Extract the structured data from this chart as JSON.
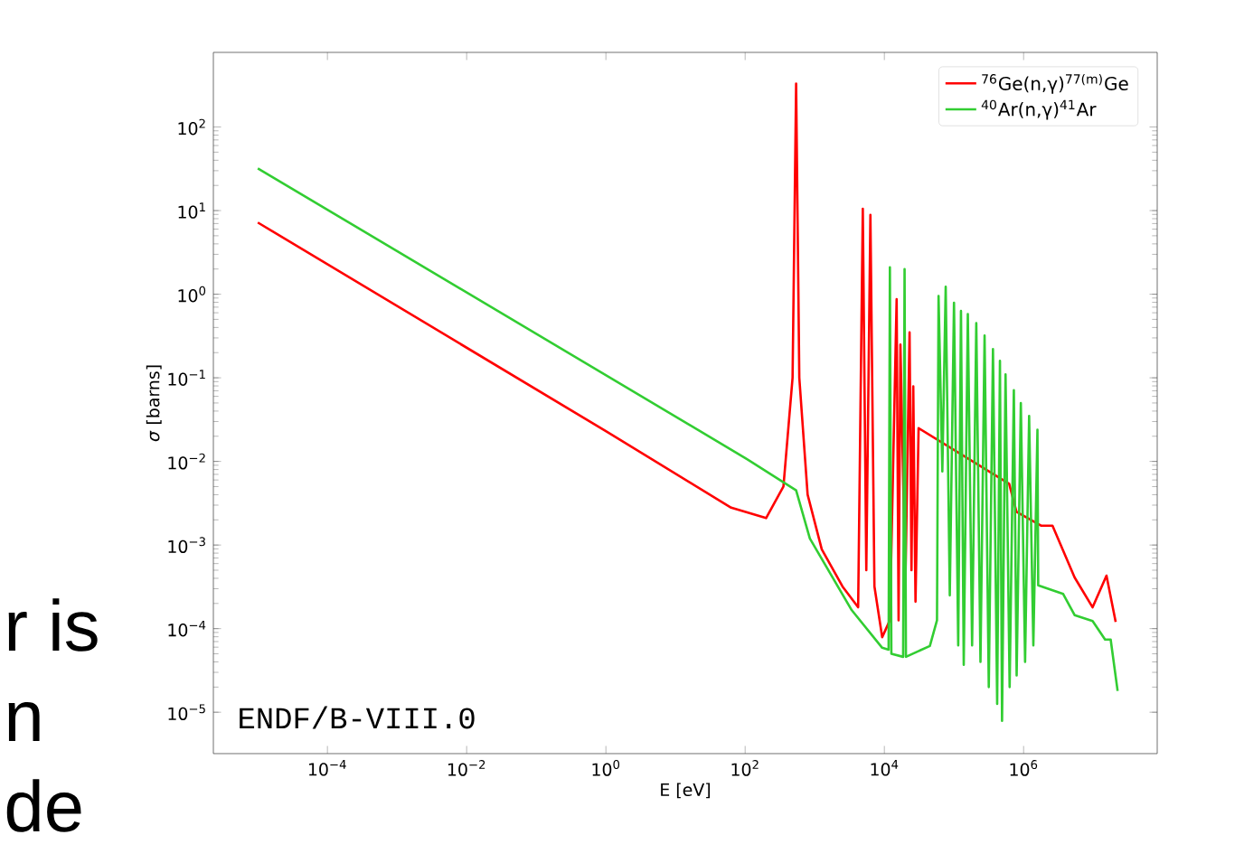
{
  "chart_data": {
    "type": "line",
    "xlabel": "E [eV]",
    "ylabel": "*σ* [barns]",
    "log": "xy",
    "legend": "top right",
    "grid": false,
    "marker": "none",
    "line_style": "solid",
    "xlim": [
      2.3e-06,
      83000000.0
    ],
    "ylim": [
      3.2e-06,
      780
    ],
    "xticks": [
      {
        "value": 0.0001,
        "label": "10$^{−4}$"
      },
      {
        "value": 0.01,
        "label": "10$^{−2}$"
      },
      {
        "value": 1,
        "label": "10$^{0}$"
      },
      {
        "value": 100,
        "label": "10$^{2}$"
      },
      {
        "value": 10000,
        "label": "10$^{4}$"
      },
      {
        "value": 1000000,
        "label": "10$^{6}$"
      }
    ],
    "yticks": [
      {
        "value": 1e-05,
        "label": "10$^{−5}$"
      },
      {
        "value": 0.0001,
        "label": "10$^{−4}$"
      },
      {
        "value": 0.001,
        "label": "10$^{−3}$"
      },
      {
        "value": 0.01,
        "label": "10$^{−2}$"
      },
      {
        "value": 0.1,
        "label": "10$^{−1}$"
      },
      {
        "value": 1,
        "label": "10$^{0}$"
      },
      {
        "value": 10,
        "label": "10$^{1}$"
      },
      {
        "value": 100,
        "label": "10$^{2}$"
      }
    ],
    "annotations": [
      "ENDF/B-VIII.0",
      "r is",
      "n",
      "de"
    ],
    "series": [
      {
        "name": "$^{76}$Ge(n,γ)$^{77(m)}$Ge",
        "color": "#ff0000",
        "x": [
          1e-05,
          1,
          63,
          200,
          355,
          480,
          540,
          600,
          790,
          1260,
          2500,
          4200,
          4900,
          5500,
          6300,
          7200,
          9300,
          12000,
          15000,
          16000,
          17000,
          20000,
          23000,
          24500,
          26000,
          28000,
          31000,
          620000,
          790000,
          1800000,
          2600000,
          5400000,
          9800000,
          15500000,
          21000000
        ],
        "values": [
          7.2,
          0.023,
          0.0028,
          0.0021,
          0.005,
          0.1,
          330,
          0.1,
          0.004,
          0.00089,
          0.00032,
          0.00018,
          10.5,
          0.0005,
          8.9,
          0.00032,
          7.9e-05,
          0.000126,
          0.87,
          0.000126,
          0.25,
          0.00032,
          0.35,
          0.0005,
          0.079,
          0.00021,
          0.025,
          0.0054,
          0.0025,
          0.0017,
          0.0017,
          0.00041,
          0.00018,
          0.00043,
          0.00012
        ]
      },
      {
        "name": "$^{40}$Ar(n,γ)$^{41}$Ar",
        "color": "#32cd32",
        "x": [
          1e-05,
          100,
          540,
          850,
          3400,
          9300,
          11500,
          12000,
          12600,
          18600,
          19500,
          20400,
          45000,
          57000,
          60000,
          68000,
          76000,
          87000,
          100000,
          115000,
          126000,
          138000,
          158000,
          182000,
          209000,
          240000,
          275000,
          316000,
          363000,
          417000,
          457000,
          490000,
          550000,
          630000,
          724000,
          794000,
          912000,
          1050000,
          1200000,
          1380000,
          1580000,
          1620000,
          3700000,
          5400000,
          9800000,
          14800000,
          17800000,
          22400000
        ],
        "values": [
          32,
          0.011,
          0.0045,
          0.0012,
          0.000166,
          5.9e-05,
          5.6e-05,
          2.1,
          5e-05,
          4.6e-05,
          2.0,
          4.6e-05,
          6.2e-05,
          0.000126,
          0.95,
          0.0076,
          1.23,
          0.00025,
          0.79,
          6.3e-05,
          0.63,
          3.7e-05,
          0.58,
          6.3e-05,
          0.45,
          4e-05,
          0.32,
          2e-05,
          0.22,
          1.26e-05,
          0.16,
          7.9e-06,
          0.11,
          2e-05,
          0.071,
          2.75e-05,
          0.05,
          4e-05,
          0.035,
          6.3e-05,
          0.024,
          0.00033,
          0.00026,
          0.000145,
          0.000123,
          7.4e-05,
          7.4e-05,
          1.8e-05
        ]
      }
    ]
  }
}
